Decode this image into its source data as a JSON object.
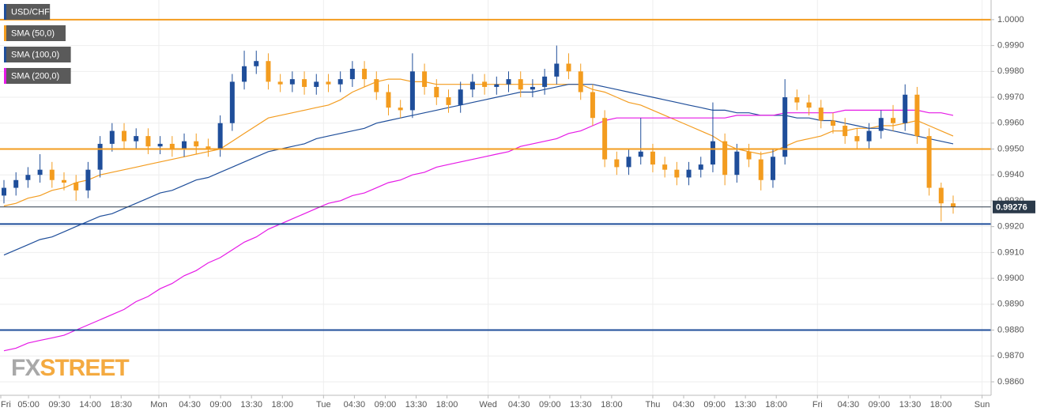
{
  "chart_data": {
    "type": "candlestick",
    "ylim": [
      0.98548,
      1.00076
    ],
    "yticks": [
      {
        "value": 0.986,
        "label": "0.9860"
      },
      {
        "value": 0.987,
        "label": "0.9870"
      },
      {
        "value": 0.988,
        "label": "0.9880"
      },
      {
        "value": 0.989,
        "label": "0.9890"
      },
      {
        "value": 0.99,
        "label": "0.9900"
      },
      {
        "value": 0.991,
        "label": "0.9910"
      },
      {
        "value": 0.992,
        "label": "0.9920"
      },
      {
        "value": 0.993,
        "label": "0.9930"
      },
      {
        "value": 0.994,
        "label": "0.9940"
      },
      {
        "value": 0.995,
        "label": "0.9950"
      },
      {
        "value": 0.996,
        "label": "0.9960"
      },
      {
        "value": 0.997,
        "label": "0.9970"
      },
      {
        "value": 0.998,
        "label": "0.9980"
      },
      {
        "value": 0.999,
        "label": "0.9990"
      },
      {
        "value": 1.0,
        "label": "1.0000"
      }
    ],
    "x_tick_labels": [
      "Fri",
      "05:00",
      "09:30",
      "14:00",
      "18:30",
      "Mon",
      "04:30",
      "09:00",
      "13:30",
      "18:00",
      "Tue",
      "04:30",
      "09:00",
      "13:30",
      "18:00",
      "Wed",
      "04:30",
      "09:00",
      "13:30",
      "18:00",
      "Thu",
      "04:30",
      "09:00",
      "13:30",
      "18:00",
      "Fri",
      "04:30",
      "09:00",
      "13:30",
      "18:00",
      "Sun"
    ],
    "grid": true,
    "candles": {
      "name": "USD/CHF",
      "color": "#1f4e9a",
      "up_color": "#1f4e9a",
      "down_color": "#f39c1f",
      "open": [
        0.9932,
        0.9935,
        0.9938,
        0.994,
        0.9942,
        0.9938,
        0.9937,
        0.9934,
        0.9942,
        0.9952,
        0.9957,
        0.9953,
        0.9955,
        0.9951,
        0.9952,
        0.995,
        0.9953,
        0.9951,
        0.995,
        0.996,
        0.9976,
        0.9982,
        0.9984,
        0.9976,
        0.9975,
        0.9977,
        0.9974,
        0.9976,
        0.9975,
        0.9977,
        0.9981,
        0.9977,
        0.9972,
        0.9966,
        0.9965,
        0.998,
        0.9974,
        0.997,
        0.9967,
        0.9973,
        0.9976,
        0.9974,
        0.9975,
        0.9977,
        0.9973,
        0.9974,
        0.9978,
        0.9983,
        0.998,
        0.9972,
        0.9962,
        0.9946,
        0.9943,
        0.9947,
        0.9949,
        0.9944,
        0.9942,
        0.9939,
        0.9942,
        0.9944,
        0.9953,
        0.994,
        0.9949,
        0.9946,
        0.9938,
        0.9947,
        0.997,
        0.9968,
        0.9966,
        0.9961,
        0.9959,
        0.9955,
        0.9953,
        0.9957,
        0.9962,
        0.996,
        0.9971,
        0.9955,
        0.9935,
        0.9929
      ],
      "high": [
        0.9938,
        0.9941,
        0.9943,
        0.9948,
        0.9945,
        0.9941,
        0.994,
        0.9945,
        0.9955,
        0.996,
        0.996,
        0.9958,
        0.9958,
        0.9955,
        0.9955,
        0.9956,
        0.9956,
        0.9954,
        0.9963,
        0.9979,
        0.9988,
        0.9988,
        0.9987,
        0.9979,
        0.998,
        0.998,
        0.9979,
        0.9979,
        0.998,
        0.9984,
        0.9984,
        0.998,
        0.9975,
        0.9969,
        0.9987,
        0.9983,
        0.9977,
        0.9973,
        0.9976,
        0.9979,
        0.9979,
        0.9978,
        0.998,
        0.998,
        0.9977,
        0.9981,
        0.999,
        0.9987,
        0.9983,
        0.9975,
        0.9965,
        0.9949,
        0.995,
        0.9962,
        0.9952,
        0.9947,
        0.9945,
        0.9945,
        0.9947,
        0.9968,
        0.9956,
        0.9952,
        0.9952,
        0.9949,
        0.995,
        0.9977,
        0.9973,
        0.9971,
        0.9969,
        0.9964,
        0.9962,
        0.9958,
        0.996,
        0.9965,
        0.9967,
        0.9975,
        0.9974,
        0.9958,
        0.9937,
        0.9932
      ],
      "low": [
        0.9929,
        0.9932,
        0.9935,
        0.9937,
        0.9935,
        0.9934,
        0.993,
        0.9931,
        0.9939,
        0.9949,
        0.995,
        0.995,
        0.9948,
        0.9948,
        0.9947,
        0.9947,
        0.9948,
        0.9947,
        0.9947,
        0.9957,
        0.9973,
        0.9979,
        0.9973,
        0.9972,
        0.9972,
        0.9971,
        0.9971,
        0.9972,
        0.9972,
        0.9974,
        0.9974,
        0.9969,
        0.9963,
        0.9962,
        0.9962,
        0.9971,
        0.9967,
        0.9964,
        0.9964,
        0.997,
        0.9971,
        0.9971,
        0.9972,
        0.997,
        0.997,
        0.9971,
        0.9975,
        0.9977,
        0.9969,
        0.9959,
        0.9943,
        0.994,
        0.994,
        0.9944,
        0.9941,
        0.9939,
        0.9936,
        0.9936,
        0.9939,
        0.9941,
        0.9936,
        0.9937,
        0.9943,
        0.9934,
        0.9935,
        0.9944,
        0.9965,
        0.9963,
        0.9958,
        0.9956,
        0.9952,
        0.995,
        0.995,
        0.9954,
        0.9957,
        0.9957,
        0.9952,
        0.9932,
        0.9922,
        0.9925
      ],
      "close": [
        0.9935,
        0.9938,
        0.994,
        0.9942,
        0.9938,
        0.9937,
        0.9934,
        0.9942,
        0.9952,
        0.9957,
        0.9953,
        0.9955,
        0.9951,
        0.9952,
        0.995,
        0.9953,
        0.9951,
        0.995,
        0.996,
        0.9976,
        0.9982,
        0.9984,
        0.9976,
        0.9975,
        0.9977,
        0.9974,
        0.9976,
        0.9975,
        0.9977,
        0.9981,
        0.9977,
        0.9972,
        0.9966,
        0.9965,
        0.998,
        0.9974,
        0.997,
        0.9967,
        0.9973,
        0.9976,
        0.9974,
        0.9975,
        0.9977,
        0.9973,
        0.9974,
        0.9978,
        0.9983,
        0.998,
        0.9972,
        0.9962,
        0.9946,
        0.9943,
        0.9947,
        0.9949,
        0.9944,
        0.9942,
        0.9939,
        0.9942,
        0.9944,
        0.9953,
        0.994,
        0.9949,
        0.9946,
        0.9938,
        0.9947,
        0.997,
        0.9968,
        0.9966,
        0.9961,
        0.9959,
        0.9955,
        0.9953,
        0.9957,
        0.9962,
        0.996,
        0.9971,
        0.9955,
        0.9935,
        0.9929,
        0.99276
      ]
    },
    "series": [
      {
        "name": "SMA (50,0)",
        "color": "#f39c1f",
        "values": [
          0.9928,
          0.9929,
          0.9931,
          0.9932,
          0.9934,
          0.9935,
          0.9937,
          0.9938,
          0.994,
          0.9941,
          0.9942,
          0.9943,
          0.9944,
          0.9945,
          0.9946,
          0.9947,
          0.9948,
          0.9949,
          0.995,
          0.9953,
          0.9956,
          0.9959,
          0.9962,
          0.9963,
          0.9964,
          0.9965,
          0.9966,
          0.9967,
          0.9969,
          0.9972,
          0.9974,
          0.9976,
          0.9977,
          0.9977,
          0.9976,
          0.9976,
          0.9975,
          0.9975,
          0.9975,
          0.9975,
          0.9975,
          0.9975,
          0.9975,
          0.9975,
          0.9975,
          0.9975,
          0.9975,
          0.9975,
          0.9975,
          0.9973,
          0.9972,
          0.997,
          0.9968,
          0.9967,
          0.9965,
          0.9963,
          0.9961,
          0.9959,
          0.9957,
          0.9955,
          0.9952,
          0.995,
          0.9949,
          0.9948,
          0.9949,
          0.9951,
          0.9953,
          0.9954,
          0.9955,
          0.9957,
          0.9957,
          0.9958,
          0.9958,
          0.9959,
          0.9959,
          0.996,
          0.9961,
          0.9959,
          0.9957,
          0.9955
        ]
      },
      {
        "name": "SMA (100,0)",
        "color": "#1f4e9a",
        "values": [
          0.9909,
          0.9911,
          0.9913,
          0.9915,
          0.9916,
          0.9918,
          0.992,
          0.9922,
          0.9924,
          0.9925,
          0.9927,
          0.9929,
          0.9931,
          0.9933,
          0.9934,
          0.9936,
          0.9938,
          0.9939,
          0.9941,
          0.9943,
          0.9945,
          0.9947,
          0.9949,
          0.995,
          0.9951,
          0.9952,
          0.9954,
          0.9955,
          0.9956,
          0.9957,
          0.9958,
          0.996,
          0.9961,
          0.9962,
          0.9963,
          0.9964,
          0.9965,
          0.9966,
          0.9967,
          0.9968,
          0.9969,
          0.997,
          0.9971,
          0.9972,
          0.9972,
          0.9973,
          0.9974,
          0.9975,
          0.9975,
          0.9975,
          0.9974,
          0.9973,
          0.9972,
          0.9971,
          0.997,
          0.9969,
          0.9968,
          0.9967,
          0.9966,
          0.9965,
          0.9965,
          0.9964,
          0.9964,
          0.9963,
          0.9963,
          0.9963,
          0.9962,
          0.9962,
          0.9961,
          0.9961,
          0.996,
          0.9959,
          0.9958,
          0.9958,
          0.9957,
          0.9956,
          0.9955,
          0.9954,
          0.9953,
          0.9952
        ]
      },
      {
        "name": "SMA (200,0)",
        "color": "#e619e6",
        "values": [
          0.9872,
          0.9873,
          0.9875,
          0.9876,
          0.9877,
          0.9878,
          0.988,
          0.9882,
          0.9884,
          0.9886,
          0.9888,
          0.9891,
          0.9893,
          0.9896,
          0.9898,
          0.9901,
          0.9903,
          0.9906,
          0.9908,
          0.9911,
          0.9914,
          0.9916,
          0.9919,
          0.9921,
          0.9923,
          0.9925,
          0.9927,
          0.9929,
          0.993,
          0.9932,
          0.9933,
          0.9935,
          0.9937,
          0.9938,
          0.994,
          0.9941,
          0.9943,
          0.9944,
          0.9945,
          0.9946,
          0.9947,
          0.9948,
          0.9949,
          0.9951,
          0.9952,
          0.9953,
          0.9954,
          0.9956,
          0.9957,
          0.9959,
          0.9961,
          0.9962,
          0.9962,
          0.9962,
          0.9962,
          0.9962,
          0.9962,
          0.9962,
          0.9962,
          0.9962,
          0.9962,
          0.9963,
          0.9963,
          0.9963,
          0.9963,
          0.9964,
          0.9964,
          0.9964,
          0.9964,
          0.9964,
          0.9965,
          0.9965,
          0.9965,
          0.9965,
          0.9965,
          0.9965,
          0.9965,
          0.9964,
          0.9964,
          0.9963
        ]
      }
    ],
    "levels": [
      {
        "value": 1.0,
        "color": "#f39c1f"
      },
      {
        "value": 0.995,
        "color": "#f39c1f"
      },
      {
        "value": 0.9921,
        "color": "#1f4e9a"
      },
      {
        "value": 0.988,
        "color": "#1f4e9a"
      }
    ],
    "last_price": 0.99276,
    "watermark": "FXSTREET"
  }
}
